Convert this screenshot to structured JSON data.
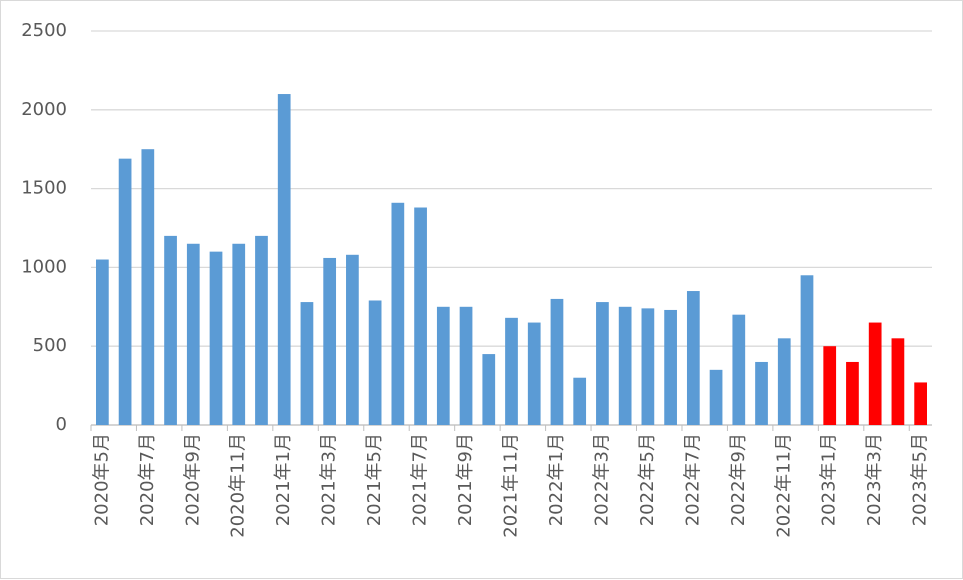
{
  "chart_data": {
    "type": "bar",
    "categories": [
      "2020年5月",
      null,
      "2020年7月",
      null,
      "2020年9月",
      null,
      "2020年11月",
      null,
      "2021年1月",
      null,
      "2021年3月",
      null,
      "2021年5月",
      null,
      "2021年7月",
      null,
      "2021年9月",
      null,
      "2021年11月",
      null,
      "2022年1月",
      null,
      "2022年3月",
      null,
      "2022年5月",
      null,
      "2022年7月",
      null,
      "2022年9月",
      null,
      "2022年11月",
      null,
      "2023年1月",
      null,
      "2023年3月",
      null,
      "2023年5月"
    ],
    "values": [
      1050,
      1690,
      1750,
      1200,
      1150,
      1100,
      1150,
      1200,
      2100,
      780,
      1060,
      1080,
      790,
      1410,
      1380,
      750,
      750,
      450,
      680,
      650,
      800,
      300,
      780,
      750,
      740,
      730,
      850,
      350,
      700,
      400,
      550,
      950,
      500,
      400,
      650,
      550,
      270
    ],
    "colors": [
      "#5b9bd5",
      "#5b9bd5",
      "#5b9bd5",
      "#5b9bd5",
      "#5b9bd5",
      "#5b9bd5",
      "#5b9bd5",
      "#5b9bd5",
      "#5b9bd5",
      "#5b9bd5",
      "#5b9bd5",
      "#5b9bd5",
      "#5b9bd5",
      "#5b9bd5",
      "#5b9bd5",
      "#5b9bd5",
      "#5b9bd5",
      "#5b9bd5",
      "#5b9bd5",
      "#5b9bd5",
      "#5b9bd5",
      "#5b9bd5",
      "#5b9bd5",
      "#5b9bd5",
      "#5b9bd5",
      "#5b9bd5",
      "#5b9bd5",
      "#5b9bd5",
      "#5b9bd5",
      "#5b9bd5",
      "#5b9bd5",
      "#5b9bd5",
      "#ff0000",
      "#ff0000",
      "#ff0000",
      "#ff0000",
      "#ff0000"
    ],
    "ylim": [
      0,
      2500
    ],
    "yticks": [
      0,
      500,
      1000,
      1500,
      2000,
      2500
    ],
    "grid": true
  }
}
